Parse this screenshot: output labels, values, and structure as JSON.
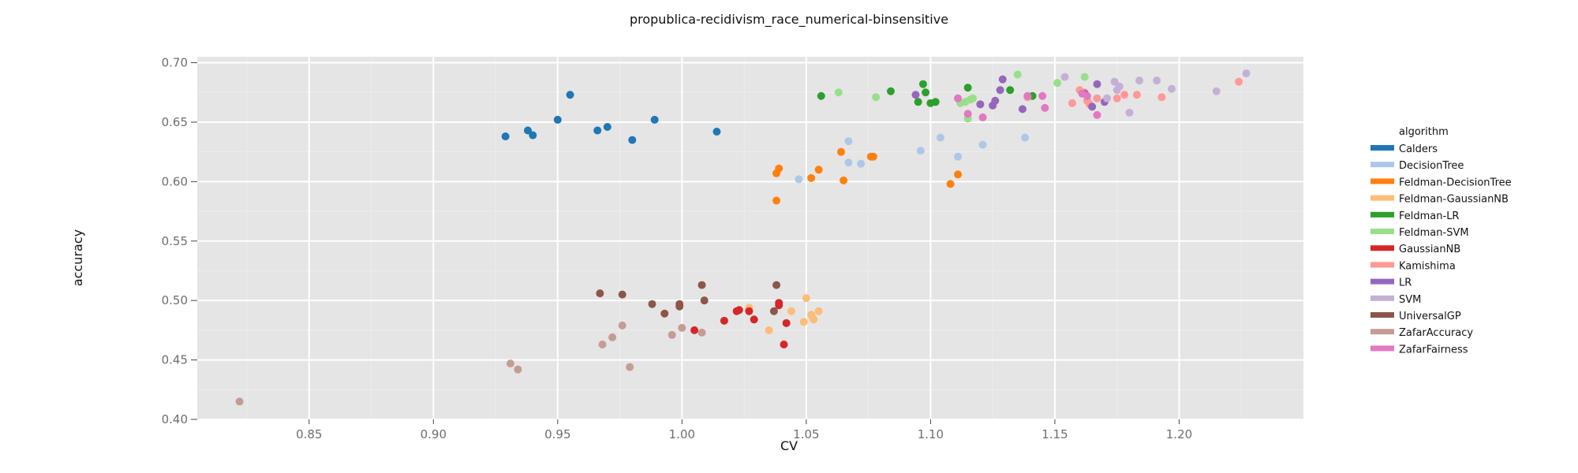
{
  "chart_data": {
    "type": "scatter",
    "title": "propublica-recidivism_race_numerical-binsensitive",
    "xlabel": "CV",
    "ylabel": "accuracy",
    "xlim": [
      0.805,
      1.25
    ],
    "ylim": [
      0.4,
      0.705
    ],
    "xticks": [
      0.85,
      0.9,
      0.95,
      1.0,
      1.05,
      1.1,
      1.15,
      1.2
    ],
    "xtick_labels": [
      "0.85",
      "0.90",
      "0.95",
      "1.00",
      "1.05",
      "1.10",
      "1.15",
      "1.20"
    ],
    "yticks": [
      0.4,
      0.45,
      0.5,
      0.55,
      0.6,
      0.65,
      0.7
    ],
    "ytick_labels": [
      "0.40",
      "0.45",
      "0.50",
      "0.55",
      "0.60",
      "0.65",
      "0.70"
    ],
    "grid": true,
    "legend_title": "algorithm",
    "legend_position": "right",
    "series": [
      {
        "name": "Calders",
        "color": "#1f77b4",
        "points": [
          [
            0.929,
            0.638
          ],
          [
            0.938,
            0.643
          ],
          [
            0.94,
            0.639
          ],
          [
            0.95,
            0.652
          ],
          [
            0.955,
            0.673
          ],
          [
            0.966,
            0.643
          ],
          [
            0.97,
            0.646
          ],
          [
            0.98,
            0.635
          ],
          [
            0.989,
            0.652
          ],
          [
            1.014,
            0.642
          ]
        ]
      },
      {
        "name": "DecisionTree",
        "color": "#aec7e8",
        "points": [
          [
            1.047,
            0.602
          ],
          [
            1.067,
            0.634
          ],
          [
            1.067,
            0.616
          ],
          [
            1.072,
            0.615
          ],
          [
            1.096,
            0.626
          ],
          [
            1.104,
            0.637
          ],
          [
            1.111,
            0.621
          ],
          [
            1.121,
            0.631
          ],
          [
            1.138,
            0.637
          ]
        ]
      },
      {
        "name": "Feldman-DecisionTree",
        "color": "#ff7f0e",
        "points": [
          [
            1.038,
            0.584
          ],
          [
            1.038,
            0.607
          ],
          [
            1.039,
            0.611
          ],
          [
            1.052,
            0.603
          ],
          [
            1.055,
            0.61
          ],
          [
            1.064,
            0.625
          ],
          [
            1.065,
            0.601
          ],
          [
            1.076,
            0.621
          ],
          [
            1.077,
            0.621
          ],
          [
            1.108,
            0.598
          ],
          [
            1.111,
            0.606
          ]
        ]
      },
      {
        "name": "Feldman-GaussianNB",
        "color": "#ffbb78",
        "points": [
          [
            1.027,
            0.494
          ],
          [
            1.035,
            0.475
          ],
          [
            1.044,
            0.491
          ],
          [
            1.049,
            0.482
          ],
          [
            1.05,
            0.502
          ],
          [
            1.052,
            0.488
          ],
          [
            1.053,
            0.484
          ],
          [
            1.055,
            0.491
          ]
        ]
      },
      {
        "name": "Feldman-LR",
        "color": "#2ca02c",
        "points": [
          [
            1.056,
            0.672
          ],
          [
            1.084,
            0.676
          ],
          [
            1.095,
            0.667
          ],
          [
            1.097,
            0.682
          ],
          [
            1.098,
            0.675
          ],
          [
            1.1,
            0.666
          ],
          [
            1.102,
            0.667
          ],
          [
            1.115,
            0.679
          ],
          [
            1.132,
            0.677
          ],
          [
            1.141,
            0.672
          ]
        ]
      },
      {
        "name": "Feldman-SVM",
        "color": "#98df8a",
        "points": [
          [
            1.063,
            0.675
          ],
          [
            1.078,
            0.671
          ],
          [
            1.112,
            0.666
          ],
          [
            1.114,
            0.667
          ],
          [
            1.115,
            0.653
          ],
          [
            1.116,
            0.669
          ],
          [
            1.117,
            0.67
          ],
          [
            1.135,
            0.69
          ],
          [
            1.151,
            0.683
          ],
          [
            1.162,
            0.688
          ]
        ]
      },
      {
        "name": "GaussianNB",
        "color": "#d62728",
        "points": [
          [
            1.005,
            0.475
          ],
          [
            1.017,
            0.483
          ],
          [
            1.022,
            0.491
          ],
          [
            1.023,
            0.492
          ],
          [
            1.027,
            0.491
          ],
          [
            1.029,
            0.484
          ],
          [
            1.039,
            0.496
          ],
          [
            1.039,
            0.498
          ],
          [
            1.041,
            0.463
          ],
          [
            1.042,
            0.481
          ]
        ]
      },
      {
        "name": "Kamishima",
        "color": "#ff9896",
        "points": [
          [
            1.139,
            0.671
          ],
          [
            1.157,
            0.666
          ],
          [
            1.16,
            0.677
          ],
          [
            1.162,
            0.675
          ],
          [
            1.163,
            0.668
          ],
          [
            1.164,
            0.665
          ],
          [
            1.167,
            0.67
          ],
          [
            1.175,
            0.67
          ],
          [
            1.178,
            0.673
          ],
          [
            1.183,
            0.673
          ],
          [
            1.193,
            0.671
          ],
          [
            1.224,
            0.684
          ]
        ]
      },
      {
        "name": "LR",
        "color": "#9467bd",
        "points": [
          [
            1.094,
            0.673
          ],
          [
            1.12,
            0.665
          ],
          [
            1.125,
            0.664
          ],
          [
            1.126,
            0.668
          ],
          [
            1.128,
            0.677
          ],
          [
            1.129,
            0.686
          ],
          [
            1.137,
            0.661
          ],
          [
            1.162,
            0.674
          ],
          [
            1.165,
            0.663
          ],
          [
            1.167,
            0.682
          ],
          [
            1.17,
            0.667
          ]
        ]
      },
      {
        "name": "SVM",
        "color": "#c5b0d5",
        "points": [
          [
            1.154,
            0.688
          ],
          [
            1.171,
            0.67
          ],
          [
            1.174,
            0.684
          ],
          [
            1.175,
            0.677
          ],
          [
            1.176,
            0.68
          ],
          [
            1.18,
            0.658
          ],
          [
            1.184,
            0.685
          ],
          [
            1.191,
            0.685
          ],
          [
            1.197,
            0.678
          ],
          [
            1.215,
            0.676
          ],
          [
            1.227,
            0.691
          ]
        ]
      },
      {
        "name": "UniversalGP",
        "color": "#8c564b",
        "points": [
          [
            0.967,
            0.506
          ],
          [
            0.976,
            0.505
          ],
          [
            0.988,
            0.497
          ],
          [
            0.993,
            0.489
          ],
          [
            0.999,
            0.495
          ],
          [
            0.999,
            0.497
          ],
          [
            1.008,
            0.513
          ],
          [
            1.009,
            0.5
          ],
          [
            1.037,
            0.491
          ],
          [
            1.038,
            0.513
          ]
        ]
      },
      {
        "name": "ZafarAccuracy",
        "color": "#c49c94",
        "points": [
          [
            0.822,
            0.415
          ],
          [
            0.931,
            0.447
          ],
          [
            0.934,
            0.442
          ],
          [
            0.968,
            0.463
          ],
          [
            0.972,
            0.469
          ],
          [
            0.976,
            0.479
          ],
          [
            0.979,
            0.444
          ],
          [
            0.996,
            0.471
          ],
          [
            1.0,
            0.477
          ],
          [
            1.008,
            0.473
          ]
        ]
      },
      {
        "name": "ZafarFairness",
        "color": "#e377c2",
        "points": [
          [
            1.111,
            0.67
          ],
          [
            1.115,
            0.657
          ],
          [
            1.121,
            0.654
          ],
          [
            1.139,
            0.672
          ],
          [
            1.145,
            0.672
          ],
          [
            1.146,
            0.662
          ],
          [
            1.161,
            0.674
          ],
          [
            1.163,
            0.672
          ],
          [
            1.167,
            0.656
          ]
        ]
      }
    ]
  }
}
